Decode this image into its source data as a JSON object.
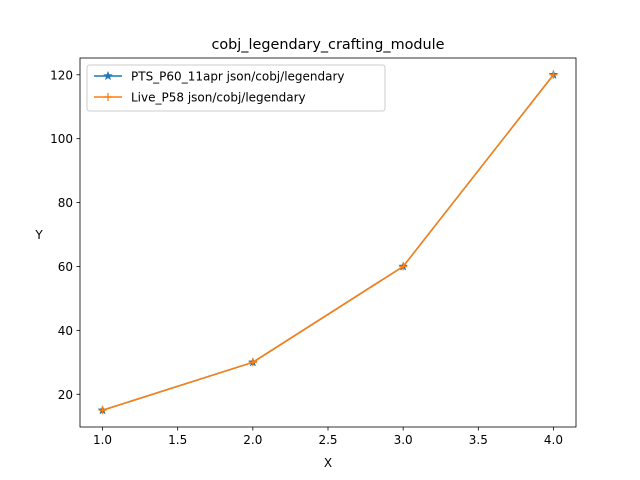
{
  "chart_data": {
    "type": "line",
    "title": "cobj_legendary_crafting_module",
    "xlabel": "X",
    "ylabel": "Y",
    "xlim": [
      0.85,
      4.15
    ],
    "ylim": [
      9.75,
      125.25
    ],
    "xticks": [
      1.0,
      1.5,
      2.0,
      2.5,
      3.0,
      3.5,
      4.0
    ],
    "xtick_labels": [
      "1.0",
      "1.5",
      "2.0",
      "2.5",
      "3.0",
      "3.5",
      "4.0"
    ],
    "yticks": [
      20,
      40,
      60,
      80,
      100,
      120
    ],
    "ytick_labels": [
      "20",
      "40",
      "60",
      "80",
      "100",
      "120"
    ],
    "grid": false,
    "legend_position": "top-left",
    "series": [
      {
        "name": "PTS_P60_11apr json/cobj/legendary",
        "color": "#1f77b4",
        "marker": "star",
        "x": [
          1.0,
          2.0,
          3.0,
          4.0
        ],
        "y": [
          15,
          30,
          60,
          120
        ]
      },
      {
        "name": "Live_P58 json/cobj/legendary",
        "color": "#ff7f0e",
        "marker": "plus",
        "x": [
          1.0,
          2.0,
          3.0,
          4.0
        ],
        "y": [
          15,
          30,
          60,
          120
        ]
      }
    ]
  }
}
